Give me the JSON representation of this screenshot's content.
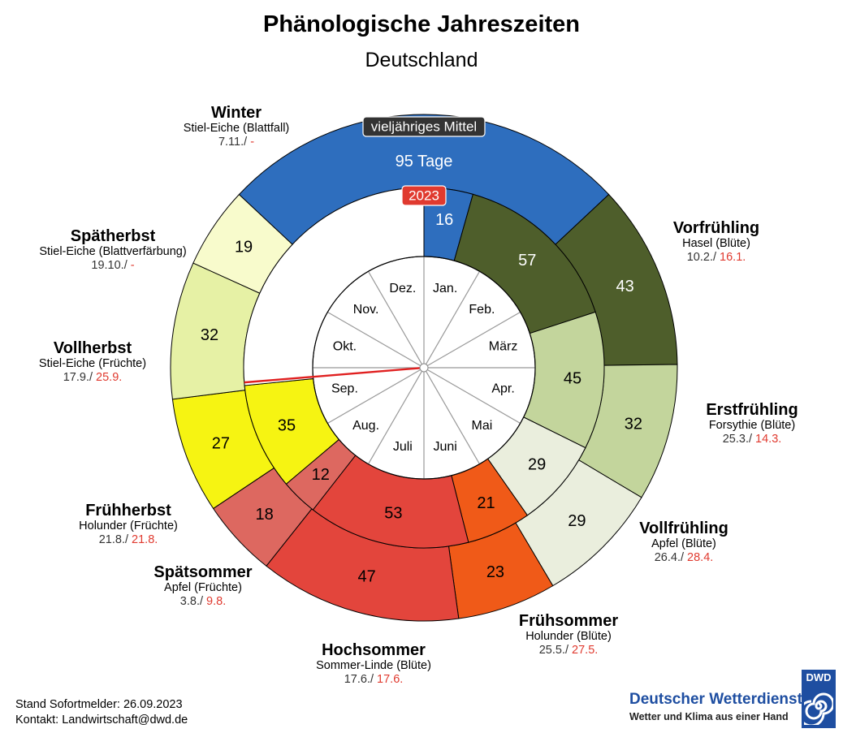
{
  "title": "Phänologische Jahreszeiten",
  "subtitle": "Deutschland",
  "labels": {
    "mittel_badge": "vieljähriges Mittel",
    "year_badge": "2023",
    "winter_days": "95 Tage"
  },
  "months": [
    "Jan.",
    "Feb.",
    "März",
    "Apr.",
    "Mai",
    "Juni",
    "Juli",
    "Aug.",
    "Sep.",
    "Okt.",
    "Nov.",
    "Dez."
  ],
  "seasons": [
    {
      "name": "Vorfrühling",
      "plant": "Hasel (Blüte)",
      "mean_date": "10.2./",
      "date_2023": "16.1.",
      "color": "#4e5e2b",
      "label_color": "#ffffff"
    },
    {
      "name": "Erstfrühling",
      "plant": "Forsythie (Blüte)",
      "mean_date": "25.3./",
      "date_2023": "14.3.",
      "color": "#c3d59c",
      "label_color": "#000000"
    },
    {
      "name": "Vollfrühling",
      "plant": "Apfel (Blüte)",
      "mean_date": "26.4./",
      "date_2023": "28.4.",
      "color": "#eaeedd",
      "label_color": "#000000"
    },
    {
      "name": "Frühsommer",
      "plant": "Holunder (Blüte)",
      "mean_date": "25.5./",
      "date_2023": "27.5.",
      "color": "#f05a18",
      "label_color": "#000000"
    },
    {
      "name": "Hochsommer",
      "plant": "Sommer-Linde (Blüte)",
      "mean_date": "17.6./",
      "date_2023": "17.6.",
      "color": "#e3453c",
      "label_color": "#000000"
    },
    {
      "name": "Spätsommer",
      "plant": "Apfel (Früchte)",
      "mean_date": "3.8./",
      "date_2023": "9.8.",
      "color": "#dd6860",
      "label_color": "#000000"
    },
    {
      "name": "Frühherbst",
      "plant": "Holunder (Früchte)",
      "mean_date": "21.8./",
      "date_2023": "21.8.",
      "color": "#f6f412",
      "label_color": "#000000"
    },
    {
      "name": "Vollherbst",
      "plant": "Stiel-Eiche (Früchte)",
      "mean_date": "17.9./",
      "date_2023": "25.9.",
      "color": "#e6f1a5",
      "label_color": "#000000"
    },
    {
      "name": "Spätherbst",
      "plant": "Stiel-Eiche (Blattverfärbung)",
      "mean_date": "19.10./",
      "date_2023": "-",
      "color": "#f8fbcc",
      "label_color": "#000000"
    },
    {
      "name": "Winter",
      "plant": "Stiel-Eiche (Blattfall)",
      "mean_date": "7.11./",
      "date_2023": "-",
      "color": "#2e6ebe",
      "label_color": "#ffffff"
    }
  ],
  "chart_data": {
    "type": "pie",
    "chart_kind": "two-ring phenological clock (donut)",
    "series": [
      {
        "name": "vieljähriges Mittel",
        "categories": [
          "Vorfrühling",
          "Erstfrühling",
          "Vollfrühling",
          "Frühsommer",
          "Hochsommer",
          "Spätsommer",
          "Frühherbst",
          "Vollherbst",
          "Spätherbst",
          "Winter"
        ],
        "values": [
          43,
          32,
          29,
          23,
          47,
          18,
          27,
          32,
          19,
          95
        ],
        "value_labels": [
          "43",
          "32",
          "29",
          "23",
          "47",
          "18",
          "27",
          "32",
          "19",
          "95 Tage"
        ]
      },
      {
        "name": "2023",
        "categories": [
          "Winter",
          "Vorfrühling",
          "Erstfrühling",
          "Vollfrühling",
          "Frühsommer",
          "Hochsommer",
          "Spätsommer",
          "Frühherbst"
        ],
        "values": [
          16,
          57,
          45,
          29,
          21,
          53,
          12,
          35
        ],
        "value_labels": [
          "16",
          "57",
          "45",
          "29",
          "21",
          "53",
          "12",
          "35"
        ]
      }
    ],
    "year_start": "1.1.",
    "current_date": "26.09.2023"
  },
  "footer": {
    "stand": "Stand Sofortmelder: 26.09.2023",
    "kontakt": "Kontakt: Landwirtschaft@dwd.de"
  },
  "logo": {
    "name": "Deutscher Wetterdienst",
    "slogan": "Wetter und Klima aus einer Hand",
    "abbr": "DWD"
  }
}
